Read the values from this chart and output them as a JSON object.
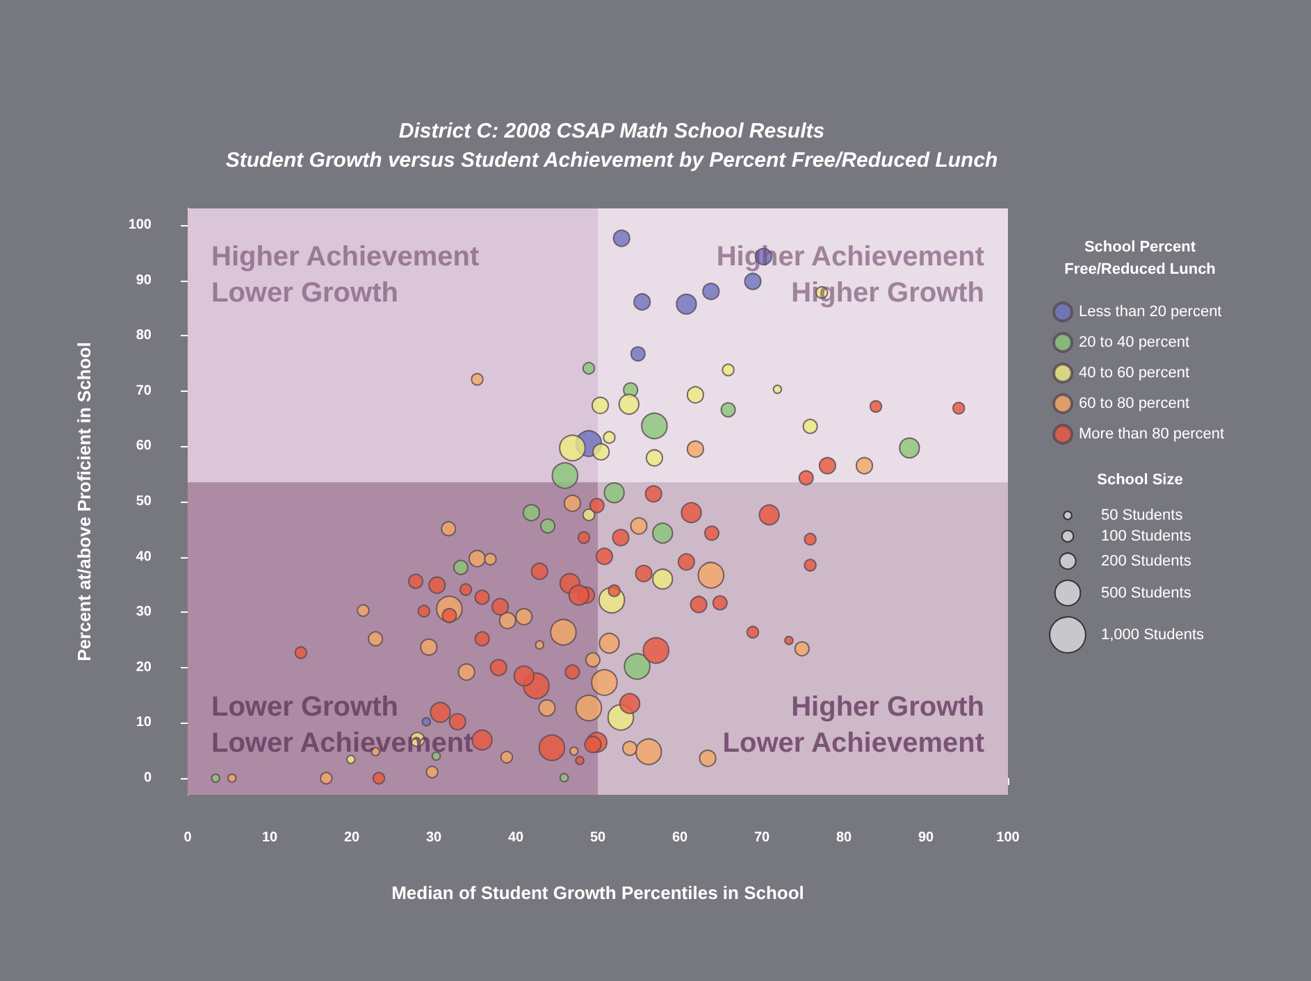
{
  "chart_data": {
    "type": "bubble",
    "title": "District C: 2008 CSAP Math School Results",
    "subtitle": "Student Growth versus Student Achievement by Percent Free/Reduced Lunch",
    "xlabel": "Median of Student Growth Percentiles in School",
    "ylabel": "Percent at/above Proficient in School",
    "legend_title": "School Percent\nFree/Reduced Lunch",
    "legend": "right",
    "marker": "circle",
    "xlim": [
      0,
      100
    ],
    "xticks": [
      0,
      10,
      20,
      30,
      40,
      50,
      60,
      70,
      80,
      90,
      100
    ],
    "ylim": [
      -3,
      103
    ],
    "yticks": [
      0,
      10,
      20,
      30,
      40,
      50,
      60,
      70,
      80,
      90,
      100
    ],
    "size_legend": [
      {
        "value": 50,
        "label": "50 Students"
      },
      {
        "value": 100,
        "label": "100 Students"
      },
      {
        "value": 200,
        "label": "200 Students"
      },
      {
        "value": 500,
        "label": "500 Students"
      },
      {
        "value": 1000,
        "label": "1,000 Students"
      }
    ],
    "bands": [
      {
        "axis": "y",
        "from": -3,
        "to": 53.5,
        "color": "#ad8ba4"
      },
      {
        "axis": "y",
        "from": 53.5,
        "to": 103,
        "color": "#dac6d8"
      },
      {
        "axis": "x",
        "from": 50,
        "to": 100,
        "color": "#ffffff"
      }
    ],
    "annotations": [
      "Higher Achievement\nLower Growth",
      "Higher Achievement\nHigher Growth",
      "Lower Growth\nLower Achievement",
      "Higher Growth\nLower Achievement",
      "School Size"
    ],
    "series": [
      {
        "name": "Less than 20 percent",
        "color": "#6f74c0",
        "x": [
          52.9,
          70.2,
          68.9,
          63.8,
          60.8,
          55.4,
          54.9,
          48.9,
          29.1
        ],
        "values": [
          97.6,
          94.3,
          89.8,
          88,
          85.7,
          86.1,
          76.7,
          60.5,
          10.2
        ],
        "sizes": [
          200,
          200,
          200,
          200,
          300,
          200,
          150,
          500,
          50
        ]
      },
      {
        "name": "20 to 40 percent",
        "color": "#8cc67a",
        "x": [
          48.9,
          54,
          56.9,
          65.9,
          88,
          52,
          46,
          41.9,
          43.9,
          33.3,
          57.9,
          54.8,
          3.4,
          30.3,
          45.9
        ],
        "values": [
          74.1,
          70.2,
          63.7,
          66.6,
          59.7,
          51.6,
          54.7,
          48,
          45.6,
          38.1,
          44.3,
          20.2,
          0,
          4,
          0.1
        ],
        "sizes": [
          100,
          150,
          500,
          150,
          300,
          300,
          500,
          200,
          150,
          150,
          300,
          500,
          50,
          50,
          50
        ]
      },
      {
        "name": "40 to 60 percent",
        "color": "#eeea80",
        "x": [
          77.3,
          65.9,
          71.9,
          61.9,
          50.3,
          53.8,
          75.9,
          56.9,
          50.4,
          51.4,
          46.9,
          48.9,
          57.9,
          51.7,
          52.8,
          28,
          19.9
        ],
        "values": [
          87.8,
          73.8,
          70.3,
          69.3,
          67.4,
          67.6,
          63.6,
          57.9,
          59,
          61.6,
          59.7,
          47.6,
          36,
          32.2,
          11,
          7,
          3.4
        ],
        "sizes": [
          100,
          100,
          50,
          200,
          200,
          300,
          150,
          200,
          200,
          100,
          500,
          100,
          300,
          500,
          500,
          150,
          50
        ]
      },
      {
        "name": "60 to 80 percent",
        "color": "#f3a866",
        "x": [
          35.3,
          61.9,
          82.5,
          31.8,
          46.9,
          35.3,
          36.9,
          31.9,
          41,
          39,
          21.4,
          22.9,
          29.4,
          34,
          45.8,
          42.9,
          43.8,
          38.9,
          29.8,
          16.9,
          5.4,
          22.9,
          47.1,
          48.9,
          55,
          63.8,
          51.4,
          49.4,
          50.8,
          56.2,
          53.9,
          63.4,
          74.9
        ],
        "values": [
          72.1,
          59.5,
          56.5,
          45.1,
          49.7,
          39.7,
          39.6,
          30.6,
          29.2,
          28.5,
          30.3,
          25.2,
          23.7,
          19.2,
          26.4,
          24.1,
          12.7,
          3.8,
          1.1,
          0,
          0,
          4.8,
          4.9,
          12.7,
          45.6,
          36.7,
          24.4,
          21.4,
          17.3,
          4.8,
          5.4,
          3.6,
          23.4
        ],
        "sizes": [
          100,
          200,
          200,
          150,
          200,
          200,
          100,
          500,
          200,
          200,
          100,
          150,
          200,
          200,
          500,
          50,
          200,
          100,
          100,
          100,
          50,
          50,
          50,
          500,
          200,
          500,
          300,
          150,
          500,
          500,
          150,
          200,
          150
        ]
      },
      {
        "name": "More than 80 percent",
        "color": "#e8593f",
        "x": [
          83.9,
          94,
          78,
          75.4,
          56.8,
          61.4,
          70.9,
          75.9,
          75.9,
          63.9,
          52.8,
          50.8,
          55.6,
          60.8,
          62.3,
          64.9,
          68.9,
          73.3,
          57.1,
          53.9,
          49.9,
          49.9,
          52,
          48.6,
          13.8,
          27.8,
          30.4,
          28.8,
          31.9,
          33.9,
          35.9,
          38.1,
          42.9,
          48.3,
          35.9,
          37.9,
          42.5,
          41,
          46.9,
          46.6,
          47.7,
          30.8,
          32.9,
          35.9,
          44.4,
          23.3,
          47.8,
          49.4
        ],
        "values": [
          67.2,
          66.9,
          56.5,
          54.3,
          51.4,
          48,
          47.6,
          43.2,
          38.5,
          44.3,
          43.5,
          40.1,
          37,
          39.1,
          31.4,
          31.7,
          26.4,
          24.9,
          23.1,
          13.5,
          6.5,
          49.3,
          33.9,
          33.1,
          22.7,
          35.6,
          34.9,
          30.2,
          29.4,
          34.1,
          32.7,
          31,
          37.4,
          43.5,
          25.2,
          20,
          16.7,
          18.5,
          19.2,
          35.2,
          33.1,
          11.9,
          10.2,
          6.9,
          5.5,
          0,
          3.2,
          6.1
        ],
        "sizes": [
          100,
          100,
          200,
          150,
          200,
          300,
          300,
          100,
          100,
          150,
          200,
          200,
          200,
          200,
          200,
          150,
          100,
          50,
          500,
          300,
          300,
          150,
          100,
          200,
          100,
          150,
          200,
          100,
          150,
          100,
          150,
          200,
          200,
          100,
          150,
          200,
          500,
          300,
          150,
          300,
          300,
          300,
          200,
          300,
          500,
          100,
          50,
          200
        ]
      }
    ]
  }
}
